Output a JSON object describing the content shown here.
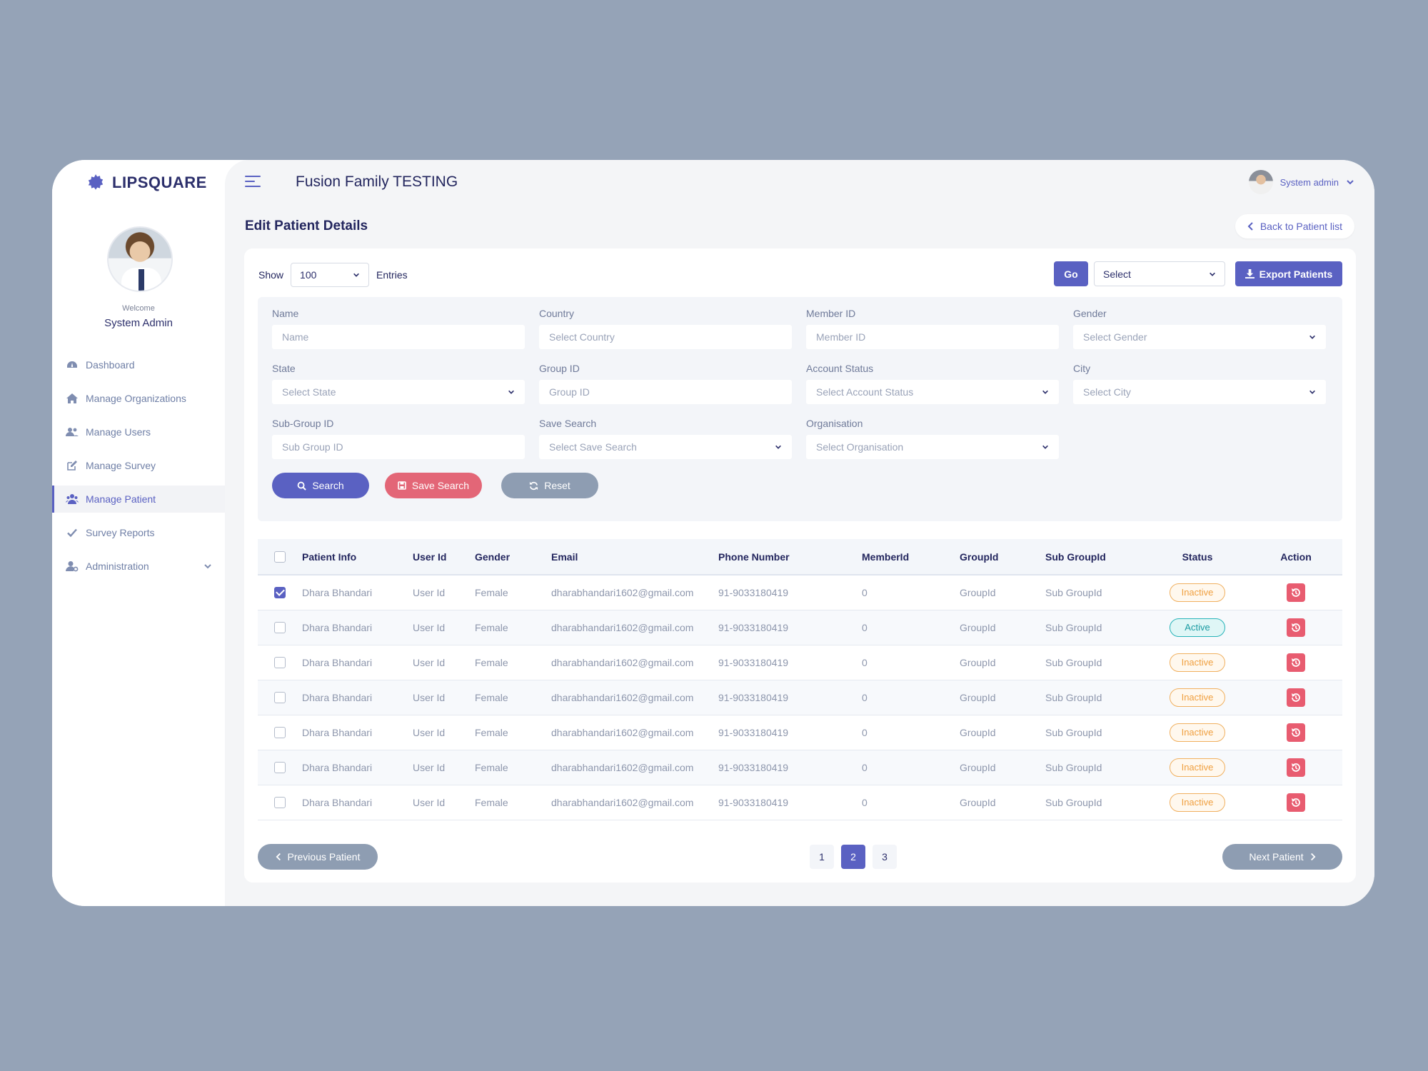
{
  "brand": {
    "name": "LIPSQUARE"
  },
  "profile": {
    "welcome": "Welcome",
    "name": "System Admin"
  },
  "sidebar": {
    "items": [
      {
        "label": "Dashboard",
        "icon": "dashboard-icon"
      },
      {
        "label": "Manage Organizations",
        "icon": "home-icon"
      },
      {
        "label": "Manage Users",
        "icon": "users-icon"
      },
      {
        "label": "Manage Survey",
        "icon": "edit-icon"
      },
      {
        "label": "Manage Patient",
        "icon": "patients-icon",
        "active": true
      },
      {
        "label": "Survey Reports",
        "icon": "check-icon"
      },
      {
        "label": "Administration",
        "icon": "admin-icon",
        "expandable": true
      }
    ]
  },
  "header": {
    "title": "Fusion Family TESTING",
    "user_label": "System admin"
  },
  "page": {
    "title": "Edit Patient Details",
    "back_label": "Back to Patient list"
  },
  "toolbar": {
    "show_label": "Show",
    "entries_value": "100",
    "entries_label": "Entries",
    "go_label": "Go",
    "bulk_select_value": "Select",
    "export_label": "Export Patients"
  },
  "filters": {
    "name": {
      "label": "Name",
      "placeholder": "Name"
    },
    "country": {
      "label": "Country",
      "placeholder": "Select Country"
    },
    "member_id": {
      "label": "Member ID",
      "placeholder": "Member ID"
    },
    "gender": {
      "label": "Gender",
      "placeholder": "Select Gender"
    },
    "state": {
      "label": "State",
      "placeholder": "Select State"
    },
    "group_id": {
      "label": "Group ID",
      "placeholder": "Group ID"
    },
    "account_status": {
      "label": "Account Status",
      "placeholder": "Select Account Status"
    },
    "city": {
      "label": "City",
      "placeholder": "Select City"
    },
    "sub_group_id": {
      "label": "Sub-Group ID",
      "placeholder": "Sub Group ID"
    },
    "save_search": {
      "label": "Save Search",
      "placeholder": "Select Save Search"
    },
    "organisation": {
      "label": "Organisation",
      "placeholder": "Select Organisation"
    },
    "search_label": "Search",
    "save_search_label": "Save Search",
    "reset_label": "Reset"
  },
  "table": {
    "headers": [
      "Patient Info",
      "User Id",
      "Gender",
      "Email",
      "Phone Number",
      "MemberId",
      "GroupId",
      "Sub GroupId",
      "Status",
      "Action"
    ],
    "rows": [
      {
        "checked": true,
        "name": "Dhara Bhandari",
        "user_id": "User Id",
        "gender": "Female",
        "email": "dharabhandari1602@gmail.com",
        "phone": "91-9033180419",
        "member_id": "0",
        "group_id": "GroupId",
        "sub_group_id": "Sub GroupId",
        "status": "Inactive"
      },
      {
        "checked": false,
        "name": "Dhara Bhandari",
        "user_id": "User Id",
        "gender": "Female",
        "email": "dharabhandari1602@gmail.com",
        "phone": "91-9033180419",
        "member_id": "0",
        "group_id": "GroupId",
        "sub_group_id": "Sub GroupId",
        "status": "Active"
      },
      {
        "checked": false,
        "name": "Dhara Bhandari",
        "user_id": "User Id",
        "gender": "Female",
        "email": "dharabhandari1602@gmail.com",
        "phone": "91-9033180419",
        "member_id": "0",
        "group_id": "GroupId",
        "sub_group_id": "Sub GroupId",
        "status": "Inactive"
      },
      {
        "checked": false,
        "name": "Dhara Bhandari",
        "user_id": "User Id",
        "gender": "Female",
        "email": "dharabhandari1602@gmail.com",
        "phone": "91-9033180419",
        "member_id": "0",
        "group_id": "GroupId",
        "sub_group_id": "Sub GroupId",
        "status": "Inactive"
      },
      {
        "checked": false,
        "name": "Dhara Bhandari",
        "user_id": "User Id",
        "gender": "Female",
        "email": "dharabhandari1602@gmail.com",
        "phone": "91-9033180419",
        "member_id": "0",
        "group_id": "GroupId",
        "sub_group_id": "Sub GroupId",
        "status": "Inactive"
      },
      {
        "checked": false,
        "name": "Dhara Bhandari",
        "user_id": "User Id",
        "gender": "Female",
        "email": "dharabhandari1602@gmail.com",
        "phone": "91-9033180419",
        "member_id": "0",
        "group_id": "GroupId",
        "sub_group_id": "Sub GroupId",
        "status": "Inactive"
      },
      {
        "checked": false,
        "name": "Dhara Bhandari",
        "user_id": "User Id",
        "gender": "Female",
        "email": "dharabhandari1602@gmail.com",
        "phone": "91-9033180419",
        "member_id": "0",
        "group_id": "GroupId",
        "sub_group_id": "Sub GroupId",
        "status": "Inactive"
      }
    ]
  },
  "pagination": {
    "prev_label": "Previous Patient",
    "next_label": "Next Patient",
    "pages": [
      "1",
      "2",
      "3"
    ],
    "current": "2"
  },
  "colors": {
    "accent": "#5a61c2",
    "danger": "#e36677",
    "muted_button": "#8e9db2",
    "inactive_status": "#f0a040",
    "active_status": "#1a9ba2",
    "page_background": "#95a3b7"
  }
}
